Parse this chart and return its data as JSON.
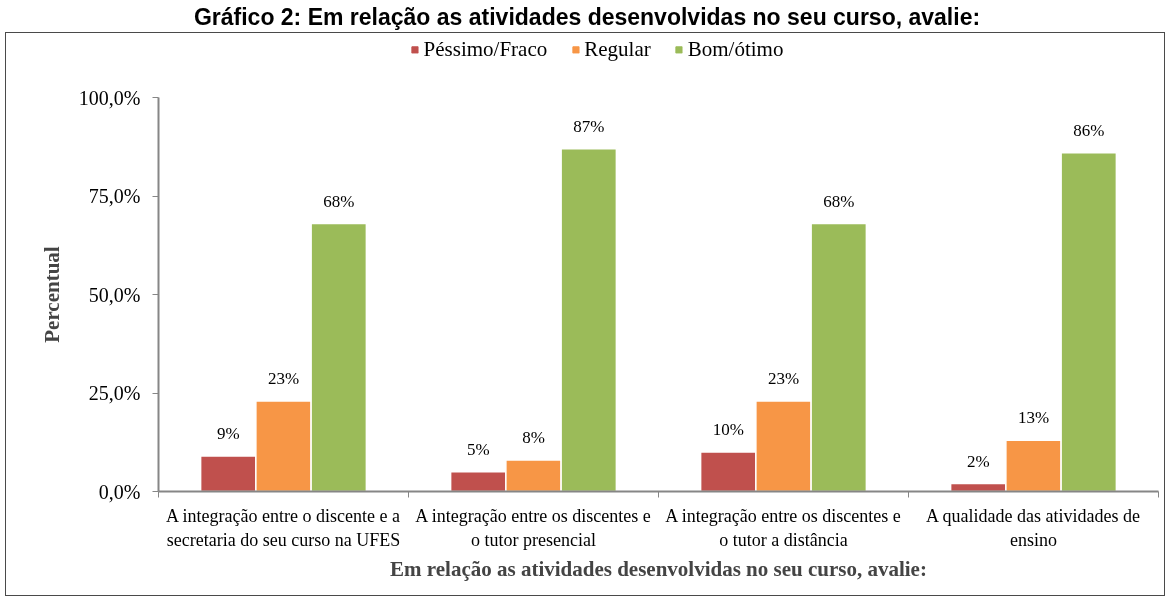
{
  "chart_data": {
    "type": "bar",
    "title": "Gráfico 2: Em relação as atividades desenvolvidas no seu curso, avalie:",
    "xlabel": "Em relação as atividades desenvolvidas no seu curso, avalie:",
    "ylabel": "Percentual",
    "categories": [
      "A integração entre o discente e a secretaria do seu curso na UFES",
      "A integração entre os discentes e o tutor presencial",
      "A integração entre os discentes e o tutor a distância",
      "A qualidade das atividades de ensino"
    ],
    "series": [
      {
        "name": "Péssimo/Fraco",
        "color": "#c0504d",
        "values": [
          9,
          5,
          10,
          2
        ],
        "value_labels": [
          "9%",
          "5%",
          "10%",
          "2%"
        ]
      },
      {
        "name": "Regular",
        "color": "#f79646",
        "values": [
          23,
          8,
          23,
          13
        ],
        "value_labels": [
          "23%",
          "8%",
          "23%",
          "13%"
        ]
      },
      {
        "name": "Bom/ótimo",
        "color": "#9bbb59",
        "values": [
          68,
          87,
          68,
          86
        ],
        "value_labels": [
          "68%",
          "87%",
          "68%",
          "86%"
        ]
      }
    ],
    "ylim": [
      0,
      100
    ],
    "yticks": [
      {
        "value": 0,
        "label": "0,0%"
      },
      {
        "value": 25,
        "label": "25,0%"
      },
      {
        "value": 50,
        "label": "50,0%"
      },
      {
        "value": 75,
        "label": "75,0%"
      },
      {
        "value": 100,
        "label": "100,0%"
      }
    ],
    "legend": "top",
    "grid": false
  }
}
